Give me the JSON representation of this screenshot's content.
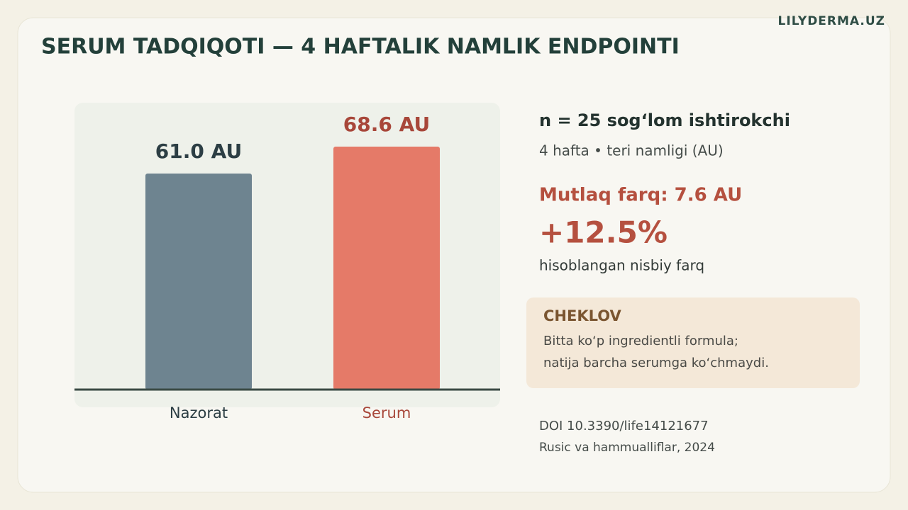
{
  "brand": "LILYDERMA.UZ",
  "header": {
    "title": "SERUM TADQIQOTI — 4 HAFTALIK NAMLIK ENDPOINTI"
  },
  "chart_data": {
    "type": "bar",
    "categories": [
      "Nazorat",
      "Serum"
    ],
    "values": [
      61.0,
      68.6
    ],
    "value_labels": [
      "61.0 AU",
      "68.6 AU"
    ],
    "colors": [
      "#6e8490",
      "#e57a68"
    ],
    "ylim": [
      0,
      80
    ]
  },
  "stats": {
    "sample": "n = 25 sog‘lom ishtirokchi",
    "design": "4 hafta • teri namligi (AU)",
    "absolute": "Mutlaq farq: 7.6 AU",
    "relative": "+12.5%",
    "relative_note": "hisoblangan nisbiy farq"
  },
  "callout": {
    "title": "CHEKLOV",
    "lines": [
      "Bitta koʻp ingredientli formula;",
      "natija barcha serumga koʻchmaydi."
    ]
  },
  "source": {
    "doi": "DOI 10.3390/life14121677",
    "authors": "Rusic va hammualliflar, 2024"
  }
}
